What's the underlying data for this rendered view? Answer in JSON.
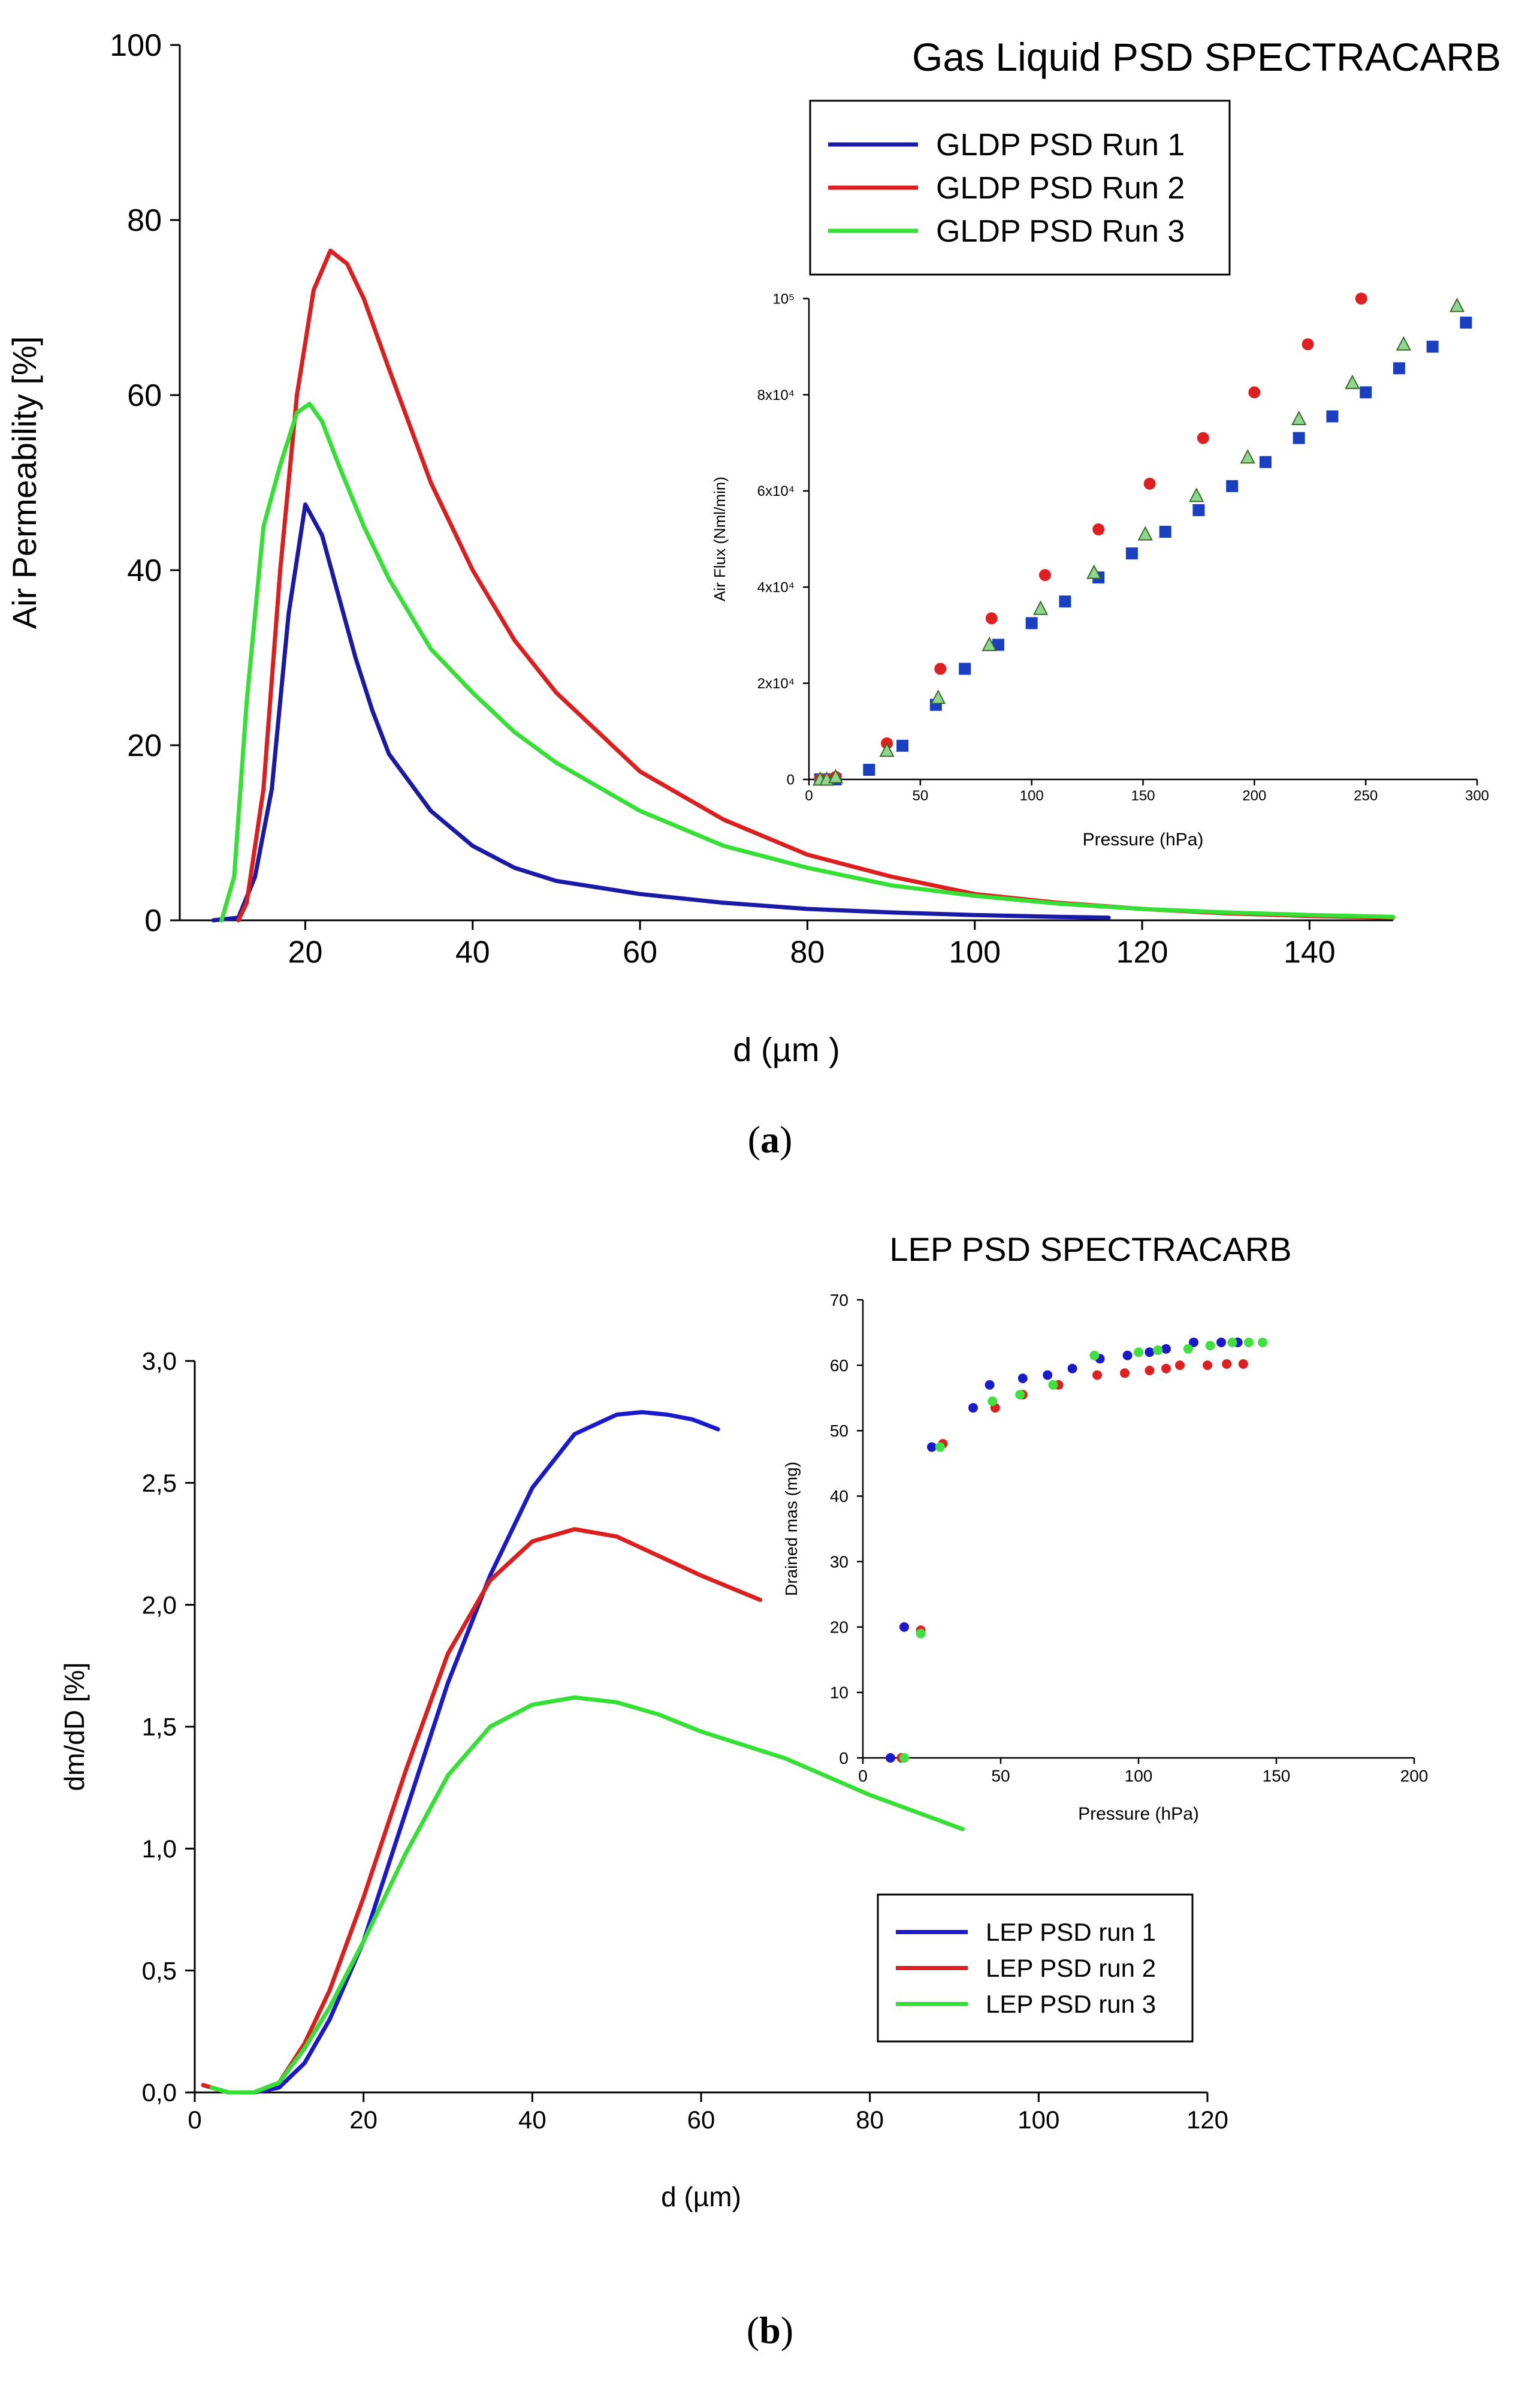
{
  "panel_a": {
    "caption_open": "(",
    "caption_letter": "a",
    "caption_close": ")"
  },
  "panel_b": {
    "caption_open": "(",
    "caption_letter": "b",
    "caption_close": ")"
  },
  "colors": {
    "blue": "#1a1aa6",
    "red": "#dc1e1e",
    "green": "#33e033",
    "green_marker": "#8fd68f"
  },
  "chart_data": [
    {
      "id": "a_main",
      "type": "line",
      "title": "Gas Liquid PSD SPECTRACARB",
      "xlabel": "d (µm )",
      "ylabel": "Air Permeability [%]",
      "xlim": [
        5,
        150
      ],
      "ylim": [
        0,
        100
      ],
      "xticks": [
        20,
        40,
        60,
        80,
        100,
        120,
        140
      ],
      "yticks": [
        0,
        20,
        40,
        60,
        80,
        100
      ],
      "legend_position": "top-right",
      "series": [
        {
          "name": "GLDP PSD Run 1",
          "color": "#1a1aa6",
          "x": [
            9,
            12,
            14,
            16,
            18,
            20,
            22,
            24,
            26,
            28,
            30,
            35,
            40,
            45,
            50,
            60,
            70,
            80,
            90,
            100,
            110,
            116
          ],
          "y": [
            0,
            0.3,
            5,
            15,
            35,
            47.5,
            44,
            37,
            30,
            24,
            19,
            12.5,
            8.5,
            6,
            4.5,
            3,
            2,
            1.3,
            0.9,
            0.6,
            0.4,
            0.3
          ]
        },
        {
          "name": "GLDP PSD Run 2",
          "color": "#dc1e1e",
          "x": [
            12,
            13,
            15,
            17,
            19,
            21,
            23,
            25,
            27,
            30,
            35,
            40,
            45,
            50,
            55,
            60,
            70,
            80,
            90,
            100,
            110,
            120,
            130,
            140,
            150
          ],
          "y": [
            0,
            2,
            15,
            40,
            60,
            72,
            76.5,
            75,
            71,
            63,
            50,
            40,
            32,
            26,
            21.5,
            17,
            11.5,
            7.5,
            5,
            3,
            2,
            1.3,
            0.8,
            0.5,
            0.3
          ]
        },
        {
          "name": "GLDP PSD Run 3",
          "color": "#33e033",
          "x": [
            10,
            11.5,
            13,
            15,
            17,
            19,
            20.5,
            22,
            24,
            27,
            30,
            35,
            40,
            45,
            50,
            60,
            70,
            80,
            90,
            100,
            110,
            120,
            130,
            140,
            150
          ],
          "y": [
            0,
            5,
            25,
            45,
            52,
            58,
            59,
            57,
            52,
            45,
            39,
            31,
            26,
            21.5,
            18,
            12.5,
            8.5,
            6,
            4,
            2.8,
            1.9,
            1.3,
            0.9,
            0.6,
            0.4
          ]
        }
      ]
    },
    {
      "id": "a_inset",
      "type": "scatter",
      "xlabel": "Pressure (hPa)",
      "ylabel": "Air Flux (Nml/min)",
      "xlim": [
        0,
        300
      ],
      "ylim": [
        0,
        100000
      ],
      "xticks": [
        0,
        50,
        100,
        150,
        200,
        250,
        300
      ],
      "yticks": [
        0,
        20000,
        40000,
        60000,
        80000,
        100000
      ],
      "ytick_labels": [
        "0",
        "2x10⁴",
        "4x10⁴",
        "6x10⁴",
        "8x10⁴",
        "10⁵"
      ],
      "series": [
        {
          "name": "Run 1",
          "marker": "square",
          "color": "#1a3fc0",
          "x": [
            5,
            8,
            12,
            27,
            42,
            57,
            70,
            85,
            100,
            115,
            130,
            145,
            160,
            175,
            190,
            205,
            220,
            235,
            250,
            265,
            280,
            295
          ],
          "y": [
            0,
            0,
            0,
            2000,
            7000,
            15500,
            23000,
            28000,
            32500,
            37000,
            42000,
            47000,
            51500,
            56000,
            61000,
            66000,
            71000,
            75500,
            80500,
            85500,
            90000,
            95000
          ]
        },
        {
          "name": "Run 2",
          "marker": "circle",
          "color": "#e02020",
          "x": [
            5,
            8,
            12,
            35,
            59,
            82,
            106,
            130,
            153,
            177,
            200,
            224,
            248
          ],
          "y": [
            0,
            0,
            500,
            7500,
            23000,
            33500,
            42500,
            52000,
            61500,
            71000,
            80500,
            90500,
            100000
          ]
        },
        {
          "name": "Run 3",
          "marker": "triangle",
          "color": "#8fd68f",
          "x": [
            5,
            8,
            12,
            35,
            58,
            81,
            104,
            128,
            151,
            174,
            197,
            220,
            244,
            267,
            291
          ],
          "y": [
            0,
            0,
            500,
            6000,
            17000,
            28000,
            35500,
            43000,
            51000,
            59000,
            67000,
            75000,
            82500,
            90500,
            98500
          ]
        }
      ]
    },
    {
      "id": "b_main",
      "type": "line",
      "title": "LEP PSD SPECTRACARB",
      "xlabel": "d (µm)",
      "ylabel": "dm/dD [%]",
      "xlim": [
        0,
        120
      ],
      "ylim": [
        0,
        3.0
      ],
      "xticks": [
        0,
        20,
        40,
        60,
        80,
        100,
        120
      ],
      "yticks": [
        0,
        0.5,
        1.0,
        1.5,
        2.0,
        2.5,
        3.0
      ],
      "ytick_labels": [
        "0,0",
        "0,5",
        "1,0",
        "1,5",
        "2,0",
        "2,5",
        "3,0"
      ],
      "legend_position": "bottom-right",
      "series": [
        {
          "name": "LEP PSD run 1",
          "color": "#1a1acc",
          "x": [
            1,
            4,
            7,
            10,
            13,
            16,
            20,
            25,
            30,
            35,
            40,
            45,
            50,
            53,
            56,
            59,
            62
          ],
          "y": [
            0.03,
            0,
            0,
            0.02,
            0.12,
            0.3,
            0.62,
            1.15,
            1.68,
            2.12,
            2.48,
            2.7,
            2.78,
            2.79,
            2.78,
            2.76,
            2.72
          ]
        },
        {
          "name": "LEP PSD run 2",
          "color": "#dc1e1e",
          "x": [
            1,
            4,
            7,
            10,
            13,
            16,
            20,
            25,
            30,
            35,
            40,
            45,
            50,
            55,
            60,
            67
          ],
          "y": [
            0.03,
            0,
            0,
            0.04,
            0.2,
            0.42,
            0.8,
            1.32,
            1.8,
            2.1,
            2.26,
            2.31,
            2.28,
            2.2,
            2.12,
            2.02
          ]
        },
        {
          "name": "LEP PSD run 3",
          "color": "#33e033",
          "x": [
            2,
            4,
            7,
            10,
            13,
            16,
            20,
            25,
            30,
            35,
            40,
            45,
            50,
            55,
            60,
            70,
            80,
            91
          ],
          "y": [
            0.02,
            0,
            0,
            0.04,
            0.18,
            0.35,
            0.62,
            0.98,
            1.3,
            1.5,
            1.59,
            1.62,
            1.6,
            1.55,
            1.48,
            1.37,
            1.22,
            1.08
          ]
        }
      ]
    },
    {
      "id": "b_inset",
      "type": "scatter",
      "xlabel": "Pressure (hPa)",
      "ylabel": "Drained mas (mg)",
      "xlim": [
        0,
        200
      ],
      "ylim": [
        0,
        70
      ],
      "xticks": [
        0,
        50,
        100,
        150,
        200
      ],
      "yticks": [
        0,
        10,
        20,
        30,
        40,
        50,
        60,
        70
      ],
      "series": [
        {
          "name": "run 1",
          "marker": "circle",
          "color": "#1a1acc",
          "x": [
            10,
            15,
            25,
            40,
            46,
            58,
            67,
            76,
            86,
            96,
            104,
            110,
            120,
            130,
            136
          ],
          "y": [
            0,
            20,
            47.5,
            53.5,
            57,
            58,
            58.5,
            59.5,
            61,
            61.5,
            62,
            62.5,
            63.5,
            63.5,
            63.5
          ]
        },
        {
          "name": "run 2",
          "marker": "circle",
          "color": "#e02020",
          "x": [
            14,
            21,
            29,
            48,
            58,
            71,
            85,
            95,
            104,
            110,
            115,
            125,
            132,
            138
          ],
          "y": [
            0,
            19.5,
            48,
            53.5,
            55.5,
            57,
            58.5,
            58.8,
            59.2,
            59.5,
            60,
            60,
            60.2,
            60.2
          ]
        },
        {
          "name": "run 3",
          "marker": "circle",
          "color": "#40e040",
          "x": [
            15,
            21,
            28,
            47,
            57,
            69,
            84,
            100,
            107,
            118,
            126,
            134,
            140,
            145
          ],
          "y": [
            0,
            19,
            47.5,
            54.5,
            55.5,
            57,
            61.5,
            62,
            62.3,
            62.5,
            63,
            63.5,
            63.5,
            63.5
          ]
        }
      ]
    }
  ]
}
